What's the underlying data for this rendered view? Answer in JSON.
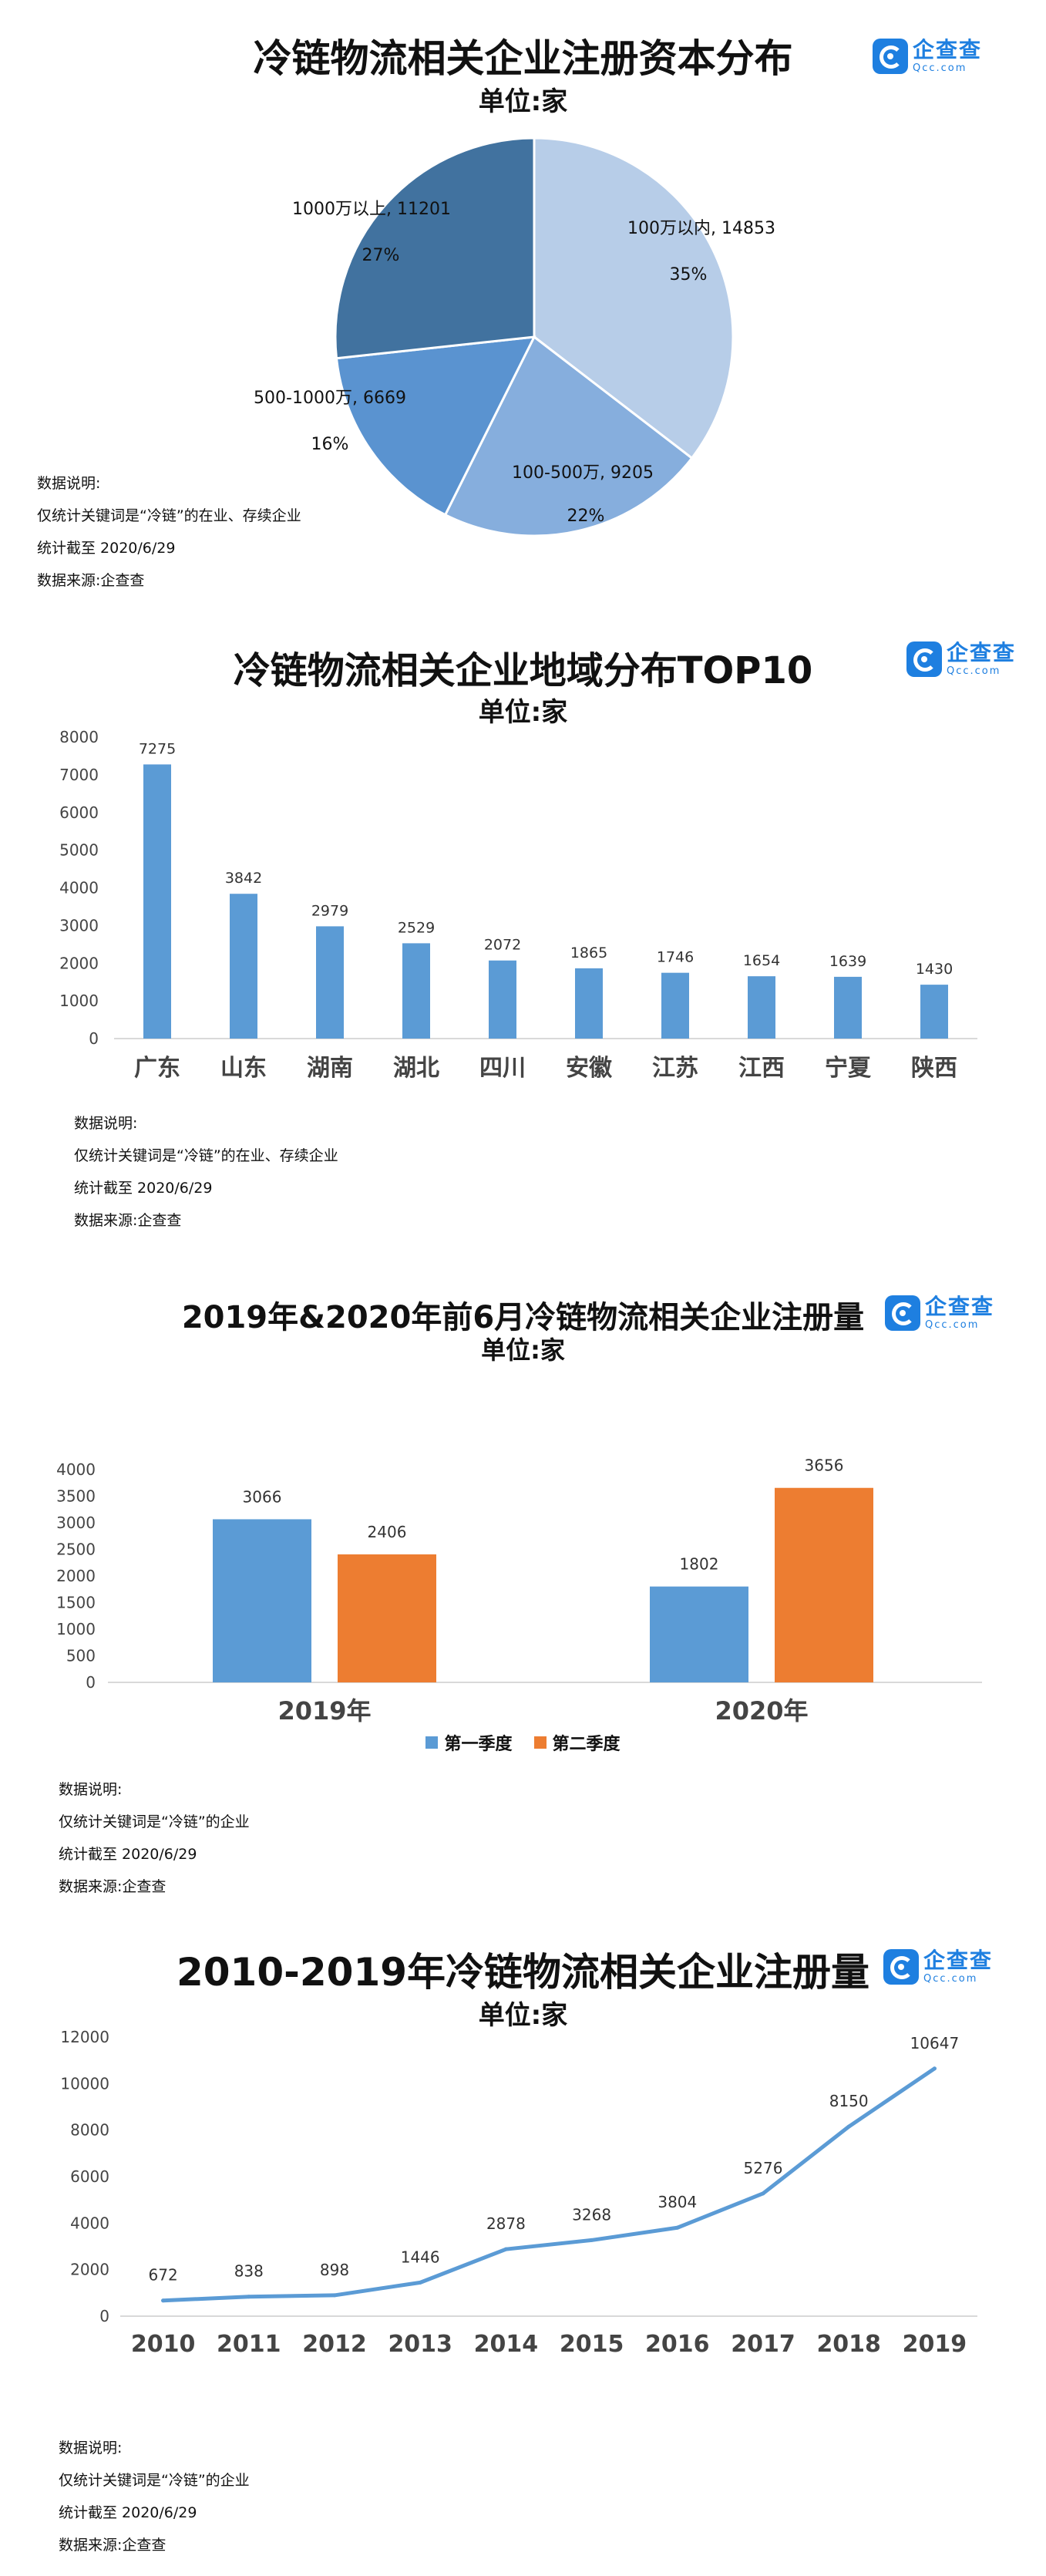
{
  "brand": {
    "logo_cn": "企查查",
    "logo_en": "Qcc.com"
  },
  "notes_common": {
    "header": "数据说明:",
    "cutoff": "统计截至 2020/6/29",
    "source": "数据来源:企查查"
  },
  "colors": {
    "pie": [
      "#b7cde8",
      "#86aedd",
      "#5a93d0",
      "#41729f"
    ],
    "bar_blue": "#5b9bd5",
    "bar_orange": "#ed7d31",
    "line": "#5b9bd5",
    "axis_text": "#444444",
    "grid": "#d9d9d9"
  },
  "chart_data": [
    {
      "type": "pie",
      "title": "冷链物流相关企业注册资本分布",
      "unit": "单位:家",
      "notes": [
        "数据说明:",
        "仅统计关键词是“冷链”的在业、存续企业",
        "统计截至 2020/6/29",
        "数据来源:企查查"
      ],
      "slices": [
        {
          "label": "100万以内",
          "value": 14853,
          "percent": "35%"
        },
        {
          "label": "100-500万",
          "value": 9205,
          "percent": "22%"
        },
        {
          "label": "500-1000万",
          "value": 6669,
          "percent": "16%"
        },
        {
          "label": "1000万以上",
          "value": 11201,
          "percent": "27%"
        }
      ]
    },
    {
      "type": "bar",
      "title": "冷链物流相关企业地域分布TOP10",
      "unit": "单位:家",
      "notes": [
        "数据说明:",
        "仅统计关键词是“冷链”的在业、存续企业",
        "统计截至 2020/6/29",
        "数据来源:企查查"
      ],
      "categories": [
        "广东",
        "山东",
        "湖南",
        "湖北",
        "四川",
        "安徽",
        "江苏",
        "江西",
        "宁夏",
        "陕西"
      ],
      "values": [
        7275,
        3842,
        2979,
        2529,
        2072,
        1865,
        1746,
        1654,
        1639,
        1430
      ],
      "ylim": [
        0,
        8000
      ],
      "yticks": [
        0,
        1000,
        2000,
        3000,
        4000,
        5000,
        6000,
        7000,
        8000
      ]
    },
    {
      "type": "bar",
      "title": "2019年&2020年前6月冷链物流相关企业注册量",
      "unit": "单位:家",
      "notes": [
        "数据说明:",
        "仅统计关键词是“冷链”的企业",
        "统计截至 2020/6/29",
        "数据来源:企查查"
      ],
      "categories": [
        "2019年",
        "2020年"
      ],
      "series": [
        {
          "name": "第一季度",
          "values": [
            3066,
            1802
          ]
        },
        {
          "name": "第二季度",
          "values": [
            2406,
            3656
          ]
        }
      ],
      "ylim": [
        0,
        4000
      ],
      "yticks": [
        0,
        500,
        1000,
        1500,
        2000,
        2500,
        3000,
        3500,
        4000
      ],
      "legend": "bottom"
    },
    {
      "type": "line",
      "title": "2010-2019年冷链物流相关企业注册量",
      "unit": "单位:家",
      "notes": [
        "数据说明:",
        "仅统计关键词是“冷链”的企业",
        "统计截至 2020/6/29",
        "数据来源:企查查"
      ],
      "x": [
        "2010",
        "2011",
        "2012",
        "2013",
        "2014",
        "2015",
        "2016",
        "2017",
        "2018",
        "2019"
      ],
      "values": [
        672,
        838,
        898,
        1446,
        2878,
        3268,
        3804,
        5276,
        8150,
        10647
      ],
      "ylim": [
        0,
        12000
      ],
      "yticks": [
        0,
        2000,
        4000,
        6000,
        8000,
        10000,
        12000
      ]
    }
  ]
}
